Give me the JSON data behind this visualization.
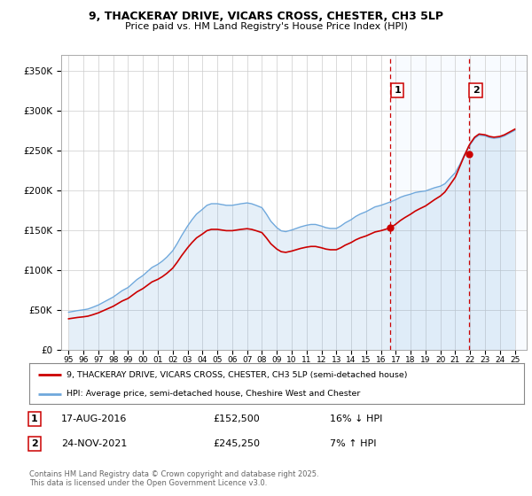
{
  "title_line1": "9, THACKERAY DRIVE, VICARS CROSS, CHESTER, CH3 5LP",
  "title_line2": "Price paid vs. HM Land Registry's House Price Index (HPI)",
  "ylabel_ticks": [
    "£0",
    "£50K",
    "£100K",
    "£150K",
    "£200K",
    "£250K",
    "£300K",
    "£350K"
  ],
  "ytick_values": [
    0,
    50000,
    100000,
    150000,
    200000,
    250000,
    300000,
    350000
  ],
  "ylim": [
    0,
    370000
  ],
  "xlim_start": 1994.5,
  "xlim_end": 2025.8,
  "xticks": [
    1995,
    1996,
    1997,
    1998,
    1999,
    2000,
    2001,
    2002,
    2003,
    2004,
    2005,
    2006,
    2007,
    2008,
    2009,
    2010,
    2011,
    2012,
    2013,
    2014,
    2015,
    2016,
    2017,
    2018,
    2019,
    2020,
    2021,
    2022,
    2023,
    2024,
    2025
  ],
  "hpi_color": "#6fa8dc",
  "price_color": "#cc0000",
  "vline_color": "#cc0000",
  "vline_style": "--",
  "shade_color": "#ddeeff",
  "transaction1_x": 2016.628,
  "transaction1_y": 152500,
  "transaction2_x": 2021.899,
  "transaction2_y": 245250,
  "label1": "1",
  "label2": "2",
  "legend_price_label": "9, THACKERAY DRIVE, VICARS CROSS, CHESTER, CH3 5LP (semi-detached house)",
  "legend_hpi_label": "HPI: Average price, semi-detached house, Cheshire West and Chester",
  "info1_num": "1",
  "info1_date": "17-AUG-2016",
  "info1_price": "£152,500",
  "info1_hpi": "16% ↓ HPI",
  "info2_num": "2",
  "info2_date": "24-NOV-2021",
  "info2_price": "£245,250",
  "info2_hpi": "7% ↑ HPI",
  "footer": "Contains HM Land Registry data © Crown copyright and database right 2025.\nThis data is licensed under the Open Government Licence v3.0.",
  "background_color": "#ffffff",
  "plot_bg_color": "#ffffff",
  "grid_color": "#cccccc"
}
